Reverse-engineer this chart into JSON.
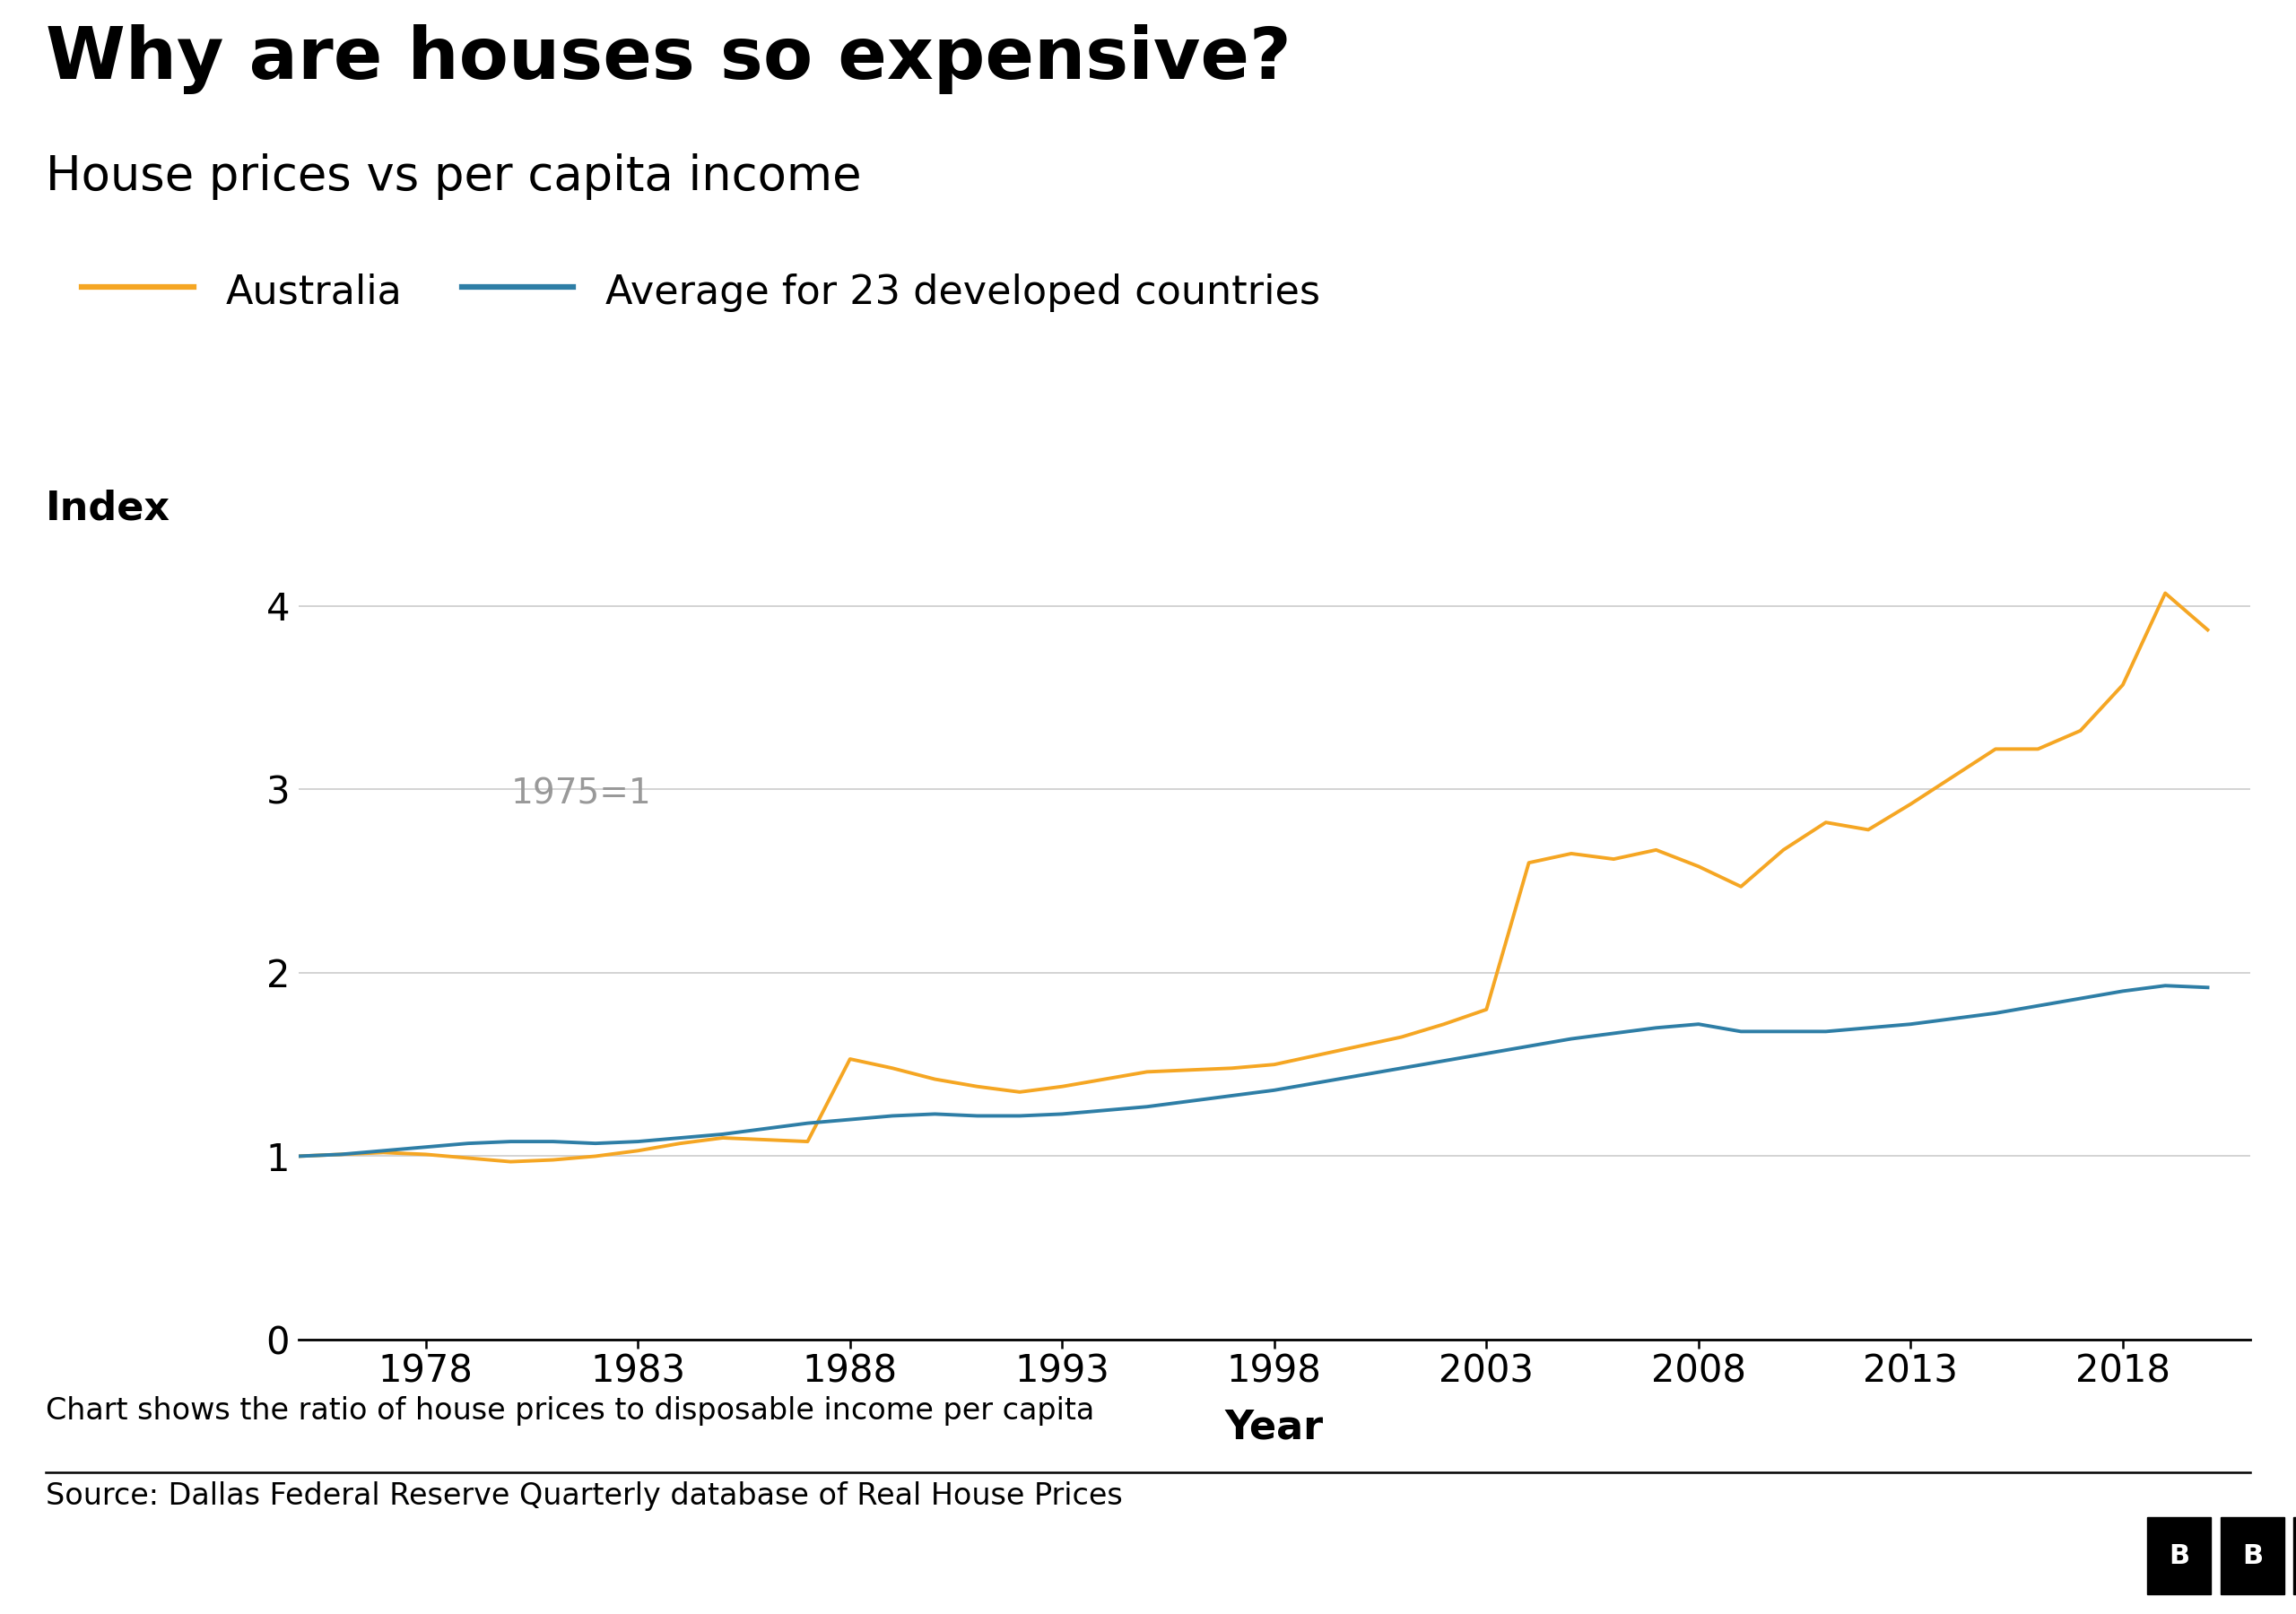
{
  "title": "Why are houses so expensive?",
  "subtitle": "House prices vs per capita income",
  "xlabel": "Year",
  "ylabel": "Index",
  "annotation": "1975=1",
  "caption": "Chart shows the ratio of house prices to disposable income per capita",
  "source": "Source: Dallas Federal Reserve Quarterly database of Real House Prices",
  "legend_entries": [
    "Australia",
    "Average for 23 developed countries"
  ],
  "australia_color": "#F5A623",
  "average_color": "#2E7EA6",
  "title_fontsize": 58,
  "subtitle_fontsize": 38,
  "legend_fontsize": 32,
  "axis_label_fontsize": 32,
  "tick_fontsize": 30,
  "caption_fontsize": 24,
  "source_fontsize": 24,
  "annotation_fontsize": 28,
  "ylim": [
    0,
    4.4
  ],
  "yticks": [
    0,
    1,
    2,
    3,
    4
  ],
  "xticks": [
    1978,
    1983,
    1988,
    1993,
    1998,
    2003,
    2008,
    2013,
    2018
  ],
  "background_color": "#FFFFFF",
  "grid_color": "#CCCCCC",
  "australia_years": [
    1975,
    1976,
    1977,
    1978,
    1979,
    1980,
    1981,
    1982,
    1983,
    1984,
    1985,
    1986,
    1987,
    1988,
    1989,
    1990,
    1991,
    1992,
    1993,
    1994,
    1995,
    1996,
    1997,
    1998,
    1999,
    2000,
    2001,
    2002,
    2003,
    2004,
    2005,
    2006,
    2007,
    2008,
    2009,
    2010,
    2011,
    2012,
    2013,
    2014,
    2015,
    2016,
    2017,
    2018,
    2019,
    2020
  ],
  "australia_values": [
    1.0,
    1.01,
    1.02,
    1.01,
    0.99,
    0.97,
    0.98,
    1.0,
    1.03,
    1.07,
    1.1,
    1.09,
    1.08,
    1.53,
    1.48,
    1.42,
    1.38,
    1.35,
    1.38,
    1.42,
    1.46,
    1.47,
    1.48,
    1.5,
    1.55,
    1.6,
    1.65,
    1.72,
    1.8,
    2.6,
    2.65,
    2.62,
    2.67,
    2.58,
    2.47,
    2.67,
    2.82,
    2.78,
    2.92,
    3.07,
    3.22,
    3.22,
    3.32,
    3.57,
    4.07,
    3.87
  ],
  "average_years": [
    1975,
    1976,
    1977,
    1978,
    1979,
    1980,
    1981,
    1982,
    1983,
    1984,
    1985,
    1986,
    1987,
    1988,
    1989,
    1990,
    1991,
    1992,
    1993,
    1994,
    1995,
    1996,
    1997,
    1998,
    1999,
    2000,
    2001,
    2002,
    2003,
    2004,
    2005,
    2006,
    2007,
    2008,
    2009,
    2010,
    2011,
    2012,
    2013,
    2014,
    2015,
    2016,
    2017,
    2018,
    2019,
    2020
  ],
  "average_values": [
    1.0,
    1.01,
    1.03,
    1.05,
    1.07,
    1.08,
    1.08,
    1.07,
    1.08,
    1.1,
    1.12,
    1.15,
    1.18,
    1.2,
    1.22,
    1.23,
    1.22,
    1.22,
    1.23,
    1.25,
    1.27,
    1.3,
    1.33,
    1.36,
    1.4,
    1.44,
    1.48,
    1.52,
    1.56,
    1.6,
    1.64,
    1.67,
    1.7,
    1.72,
    1.68,
    1.68,
    1.68,
    1.7,
    1.72,
    1.75,
    1.78,
    1.82,
    1.86,
    1.9,
    1.93,
    1.92
  ]
}
